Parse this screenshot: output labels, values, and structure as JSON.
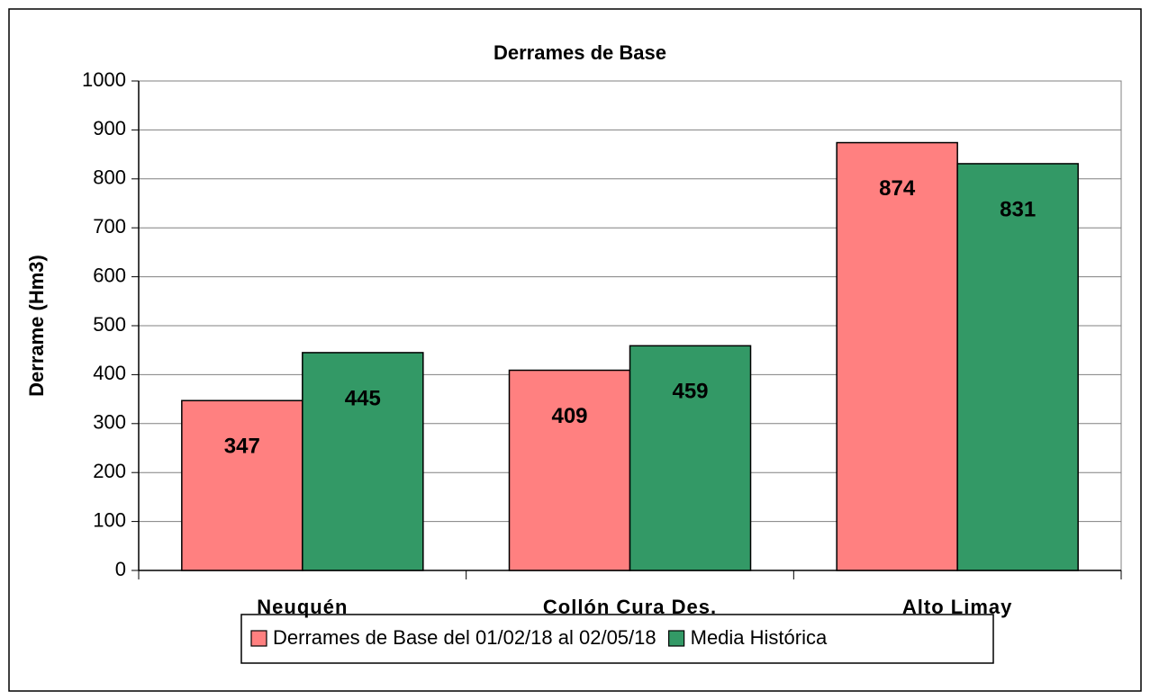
{
  "chart_data": {
    "type": "bar",
    "title": "Derrames de Base",
    "ylabel": "Derrame (Hm3)",
    "categories": [
      "Neuquén",
      "Collón Cura Des.",
      "Alto Limay"
    ],
    "series": [
      {
        "name": "Derrames de Base del 01/02/18 al 02/05/18",
        "color": "#ff8080",
        "values": [
          347,
          409,
          874
        ]
      },
      {
        "name": "Media Histórica",
        "color": "#339966",
        "values": [
          445,
          459,
          831
        ]
      }
    ],
    "ylim": [
      0,
      1000
    ],
    "yticks": [
      0,
      100,
      200,
      300,
      400,
      500,
      600,
      700,
      800,
      900,
      1000
    ],
    "grid": true,
    "legend": "bottom"
  }
}
